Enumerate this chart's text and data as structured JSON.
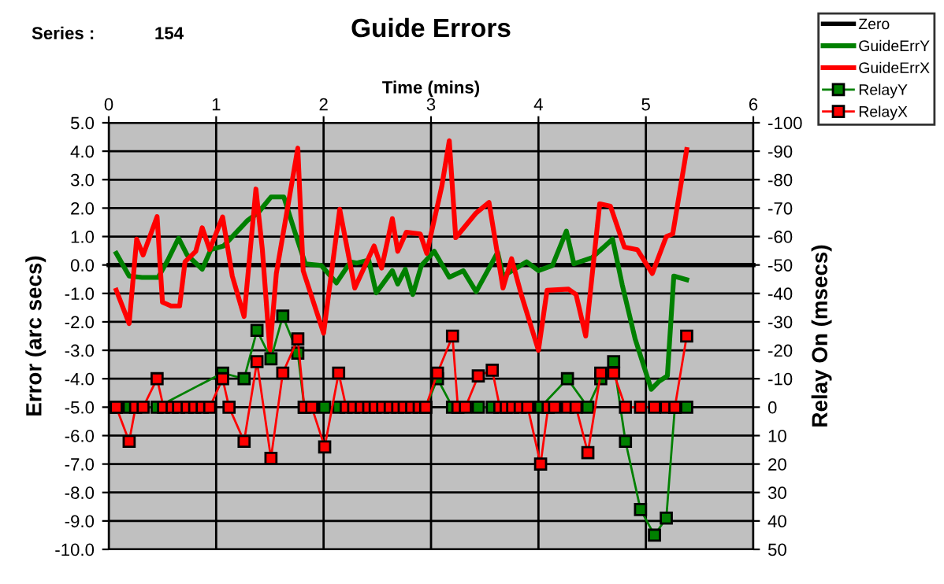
{
  "chart_data": {
    "type": "line",
    "title": "Guide Errors",
    "xlabel": "Time (mins)",
    "ylabel": "Error (arc secs)",
    "y2label": "Relay On (msecs)",
    "annotations": [
      "Series :",
      "154"
    ],
    "xlim": [
      0,
      6
    ],
    "xticks": [
      0,
      1,
      2,
      3,
      4,
      5,
      6
    ],
    "ylim": [
      -10,
      5
    ],
    "yticks": [
      {
        "value": 5,
        "label": "5.0"
      },
      {
        "value": 4,
        "label": "4.0"
      },
      {
        "value": 3,
        "label": "3.0"
      },
      {
        "value": 2,
        "label": "2.0"
      },
      {
        "value": 1,
        "label": "1.0"
      },
      {
        "value": 0,
        "label": "0.0"
      },
      {
        "value": -1,
        "label": "-1.0"
      },
      {
        "value": -2,
        "label": "-2.0"
      },
      {
        "value": -3,
        "label": "-3.0"
      },
      {
        "value": -4,
        "label": "-4.0"
      },
      {
        "value": -5,
        "label": "-5.0"
      },
      {
        "value": -6,
        "label": "-6.0"
      },
      {
        "value": -7,
        "label": "-7.0"
      },
      {
        "value": -8,
        "label": "-8.0"
      },
      {
        "value": -9,
        "label": "-9.0"
      },
      {
        "value": -10,
        "label": "-10.0"
      }
    ],
    "y2lim": [
      50,
      -100
    ],
    "y2ticks": [
      -100,
      -90,
      -80,
      -70,
      -60,
      -50,
      -40,
      -30,
      -20,
      -10,
      0,
      10,
      20,
      30,
      40,
      50
    ],
    "grid": true,
    "legend": "top right",
    "line_style": "solid",
    "series": [
      {
        "name": "Zero",
        "color": "#000000",
        "marker": "none",
        "x": [
          0,
          6
        ],
        "values": [
          0,
          0
        ]
      },
      {
        "name": "GuideErrY",
        "color": "#008000",
        "marker": "none",
        "x": [
          0.07,
          0.19,
          0.31,
          0.46,
          0.55,
          0.65,
          0.73,
          0.87,
          0.95,
          1.07,
          1.29,
          1.39,
          1.51,
          1.63,
          1.73,
          1.83,
          1.98,
          2.12,
          2.25,
          2.31,
          2.42,
          2.49,
          2.64,
          2.69,
          2.76,
          2.83,
          2.91,
          3.03,
          3.17,
          3.3,
          3.42,
          3.62,
          3.67,
          3.89,
          4.0,
          4.13,
          4.26,
          4.33,
          4.5,
          4.69,
          4.78,
          4.9,
          5.05,
          5.12,
          5.2,
          5.26,
          5.38
        ],
        "values": [
          0.41,
          -0.39,
          -0.44,
          -0.44,
          0.17,
          0.94,
          0.35,
          -0.15,
          0.54,
          0.67,
          1.56,
          1.83,
          2.39,
          2.39,
          1.19,
          0.04,
          -0.02,
          -0.63,
          0.11,
          0.07,
          0.17,
          -0.98,
          -0.2,
          -0.67,
          -0.15,
          -1.04,
          -0.02,
          0.48,
          -0.43,
          -0.2,
          -0.94,
          0.44,
          -0.39,
          0.11,
          -0.2,
          -0.02,
          1.19,
          0.04,
          0.26,
          0.91,
          -0.7,
          -2.6,
          -4.37,
          -4.1,
          -3.9,
          -0.39,
          -0.52
        ]
      },
      {
        "name": "GuideErrX",
        "color": "#ff0000",
        "marker": "none",
        "x": [
          0.07,
          0.19,
          0.26,
          0.32,
          0.45,
          0.5,
          0.58,
          0.66,
          0.71,
          0.81,
          0.87,
          0.94,
          1.06,
          1.15,
          1.26,
          1.37,
          1.43,
          1.5,
          1.56,
          1.76,
          1.81,
          2.0,
          2.15,
          2.29,
          2.47,
          2.54,
          2.64,
          2.69,
          2.77,
          2.9,
          2.96,
          3.1,
          3.17,
          3.23,
          3.42,
          3.54,
          3.67,
          3.75,
          3.84,
          4.0,
          4.08,
          4.28,
          4.35,
          4.44,
          4.57,
          4.67,
          4.8,
          4.92,
          5.06,
          5.19,
          5.25,
          5.38
        ],
        "values": [
          -0.89,
          -2.06,
          0.91,
          0.35,
          1.7,
          -1.31,
          -1.44,
          -1.44,
          0.11,
          0.48,
          1.31,
          0.54,
          1.69,
          -0.39,
          -1.81,
          2.67,
          0.54,
          -3.0,
          -0.3,
          4.11,
          -0.2,
          -2.4,
          1.96,
          -0.81,
          0.67,
          -0.11,
          1.63,
          0.48,
          1.15,
          1.09,
          0.41,
          2.76,
          4.37,
          0.96,
          1.83,
          2.2,
          -0.81,
          0.22,
          -1.04,
          -3.0,
          -0.89,
          -0.85,
          -1.04,
          -2.5,
          2.15,
          2.07,
          0.63,
          0.54,
          -0.3,
          1.0,
          1.09,
          4.06
        ]
      },
      {
        "name": "RelayY",
        "color": "#008000",
        "marker": "square",
        "axis": "y2",
        "x": [
          0.07,
          0.19,
          0.45,
          1.06,
          1.26,
          1.38,
          1.51,
          1.62,
          1.76,
          1.82,
          2.01,
          2.14,
          2.95,
          3.06,
          3.2,
          3.44,
          3.57,
          4.02,
          4.27,
          4.46,
          4.58,
          4.7,
          4.81,
          4.95,
          5.08,
          5.19,
          5.27,
          5.38
        ],
        "values": [
          0,
          0,
          0,
          -12,
          -10,
          -27,
          -17,
          -32,
          -19,
          0,
          0,
          0,
          0,
          -10,
          0,
          0,
          0,
          0,
          -10,
          0,
          -10,
          -16,
          12,
          36,
          45,
          39,
          0,
          0
        ]
      },
      {
        "name": "RelayX",
        "color": "#ff0000",
        "marker": "square",
        "axis": "y2",
        "x": [
          0.07,
          0.19,
          0.25,
          0.32,
          0.45,
          0.51,
          0.59,
          0.65,
          0.73,
          0.8,
          0.87,
          0.94,
          1.06,
          1.12,
          1.26,
          1.38,
          1.51,
          1.62,
          1.76,
          1.82,
          1.89,
          2.01,
          2.14,
          2.21,
          2.28,
          2.35,
          2.42,
          2.48,
          2.55,
          2.62,
          2.69,
          2.75,
          2.82,
          2.89,
          2.95,
          3.06,
          3.2,
          3.25,
          3.32,
          3.44,
          3.57,
          3.64,
          3.7,
          3.76,
          3.83,
          3.9,
          4.02,
          4.09,
          4.15,
          4.27,
          4.35,
          4.46,
          4.58,
          4.7,
          4.81,
          4.95,
          5.08,
          5.19,
          5.27,
          5.38
        ],
        "values": [
          0,
          12,
          0,
          0,
          -10,
          0,
          0,
          0,
          0,
          0,
          0,
          0,
          -10,
          0,
          12,
          -16,
          18,
          -12,
          -24,
          0,
          0,
          14,
          -12,
          0,
          0,
          0,
          0,
          0,
          0,
          0,
          0,
          0,
          0,
          0,
          0,
          -12,
          -25,
          0,
          0,
          -11,
          -13,
          0,
          0,
          0,
          0,
          0,
          20,
          0,
          0,
          0,
          0,
          16,
          -12,
          -12,
          0,
          0,
          0,
          0,
          0,
          -25
        ]
      }
    ]
  }
}
